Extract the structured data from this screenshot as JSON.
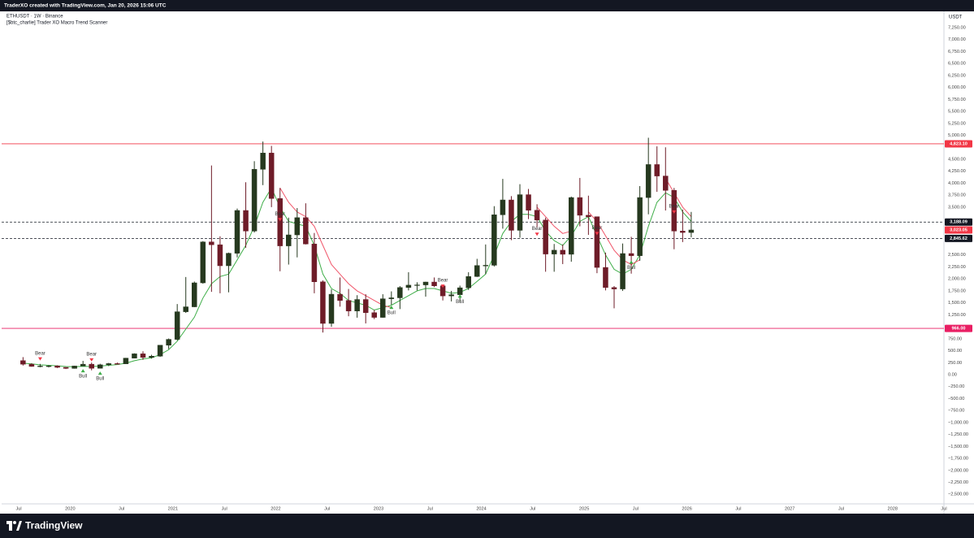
{
  "header": "TraderXO created with TradingView.com, Jan 20, 2026 15:06 UTC",
  "footer": "TradingView",
  "chart_data": {
    "type": "candlestick",
    "title": "ETHUSDT · 1W · Binance",
    "subtitle": "[$btc_charlie] Trader XO Macro Trend Scanner",
    "y_unit": "USDT",
    "up_color": "#26391f",
    "down_color": "#6e1c28",
    "x": [
      "2019-07",
      "2019-08",
      "2019-09",
      "2019-10",
      "2019-11",
      "2019-12",
      "2020-01",
      "2020-02",
      "2020-03",
      "2020-04",
      "2020-05",
      "2020-06",
      "2020-07",
      "2020-08",
      "2020-09",
      "2020-10",
      "2020-11",
      "2020-12",
      "2021-01",
      "2021-02",
      "2021-03",
      "2021-04",
      "2021-05",
      "2021-06",
      "2021-07",
      "2021-08",
      "2021-09",
      "2021-10",
      "2021-11",
      "2021-12",
      "2022-01",
      "2022-02",
      "2022-03",
      "2022-04",
      "2022-05",
      "2022-06",
      "2022-07",
      "2022-08",
      "2022-09",
      "2022-10",
      "2022-11",
      "2022-12",
      "2023-01",
      "2023-02",
      "2023-03",
      "2023-04",
      "2023-05",
      "2023-06",
      "2023-07",
      "2023-08",
      "2023-09",
      "2023-10",
      "2023-11",
      "2023-12",
      "2024-01",
      "2024-02",
      "2024-03",
      "2024-04",
      "2024-05",
      "2024-06",
      "2024-07",
      "2024-08",
      "2024-09",
      "2024-10",
      "2024-11",
      "2024-12",
      "2025-01",
      "2025-02",
      "2025-03",
      "2025-04",
      "2025-05",
      "2025-06",
      "2025-07",
      "2025-08",
      "2025-09",
      "2025-10",
      "2025-11",
      "2025-12",
      "2026-01"
    ],
    "open": [
      293,
      218,
      172,
      180,
      182,
      152,
      130,
      180,
      218,
      133,
      206,
      231,
      226,
      345,
      435,
      360,
      386,
      615,
      737,
      1314,
      1417,
      1918,
      2773,
      2714,
      2275,
      2536,
      3430,
      3000,
      4290,
      4630,
      3680,
      2690,
      2920,
      3280,
      2730,
      1940,
      1070,
      1680,
      1550,
      1330,
      1570,
      1295,
      1196,
      1585,
      1605,
      1820,
      1870,
      1875,
      1935,
      1855,
      1645,
      1670,
      1815,
      2050,
      2280,
      2285,
      3340,
      3650,
      3015,
      3760,
      3435,
      3230,
      2520,
      2600,
      2515,
      3700,
      3330,
      3300,
      2240,
      1820,
      1790,
      2530,
      2485,
      3700,
      4390,
      4150,
      3850,
      3000,
      2970
    ],
    "high": [
      366,
      240,
      224,
      199,
      195,
      155,
      186,
      288,
      253,
      227,
      246,
      253,
      350,
      445,
      488,
      415,
      620,
      755,
      1475,
      2040,
      1945,
      2790,
      4370,
      2890,
      2550,
      3470,
      4020,
      4460,
      4870,
      4780,
      3900,
      3280,
      3480,
      3580,
      2960,
      1970,
      1780,
      2030,
      1790,
      1660,
      1680,
      1350,
      1680,
      1740,
      1850,
      2140,
      1930,
      1940,
      2030,
      1870,
      1750,
      1860,
      2140,
      2420,
      2720,
      3520,
      4090,
      3730,
      3980,
      3880,
      3560,
      3280,
      2730,
      2720,
      3720,
      4110,
      3740,
      3300,
      2550,
      1850,
      2740,
      2880,
      3940,
      4950,
      4770,
      4750,
      3900,
      3450,
      3400
    ],
    "low": [
      190,
      165,
      154,
      151,
      138,
      117,
      126,
      180,
      90,
      130,
      178,
      216,
      225,
      340,
      309,
      335,
      370,
      535,
      715,
      1290,
      1410,
      1900,
      1730,
      1700,
      1720,
      2450,
      2650,
      2970,
      3960,
      3500,
      2160,
      2300,
      2450,
      2720,
      1700,
      880,
      1000,
      1420,
      1220,
      1190,
      1070,
      1160,
      1190,
      1460,
      1370,
      1760,
      1760,
      1630,
      1830,
      1550,
      1530,
      1520,
      1770,
      2040,
      2100,
      2260,
      3050,
      2810,
      2860,
      3250,
      3080,
      2150,
      2150,
      2310,
      2360,
      3100,
      2920,
      2120,
      1760,
      1385,
      1750,
      2110,
      2380,
      3350,
      3820,
      3430,
      2620,
      2770,
      2870
    ],
    "close": [
      218,
      172,
      180,
      182,
      152,
      130,
      180,
      218,
      133,
      206,
      231,
      226,
      345,
      435,
      360,
      386,
      615,
      737,
      1314,
      1417,
      1918,
      2773,
      2714,
      2275,
      2536,
      3430,
      3000,
      4290,
      4630,
      3680,
      2690,
      2920,
      3280,
      2730,
      1940,
      1070,
      1680,
      1550,
      1330,
      1570,
      1295,
      1196,
      1585,
      1605,
      1820,
      1870,
      1875,
      1935,
      1855,
      1645,
      1670,
      1815,
      2050,
      2280,
      2285,
      3340,
      3650,
      3015,
      3760,
      3435,
      3230,
      2520,
      2600,
      2515,
      3700,
      3330,
      3300,
      2240,
      1820,
      1790,
      2530,
      2485,
      3700,
      4390,
      4150,
      3850,
      3000,
      2970,
      3023.05
    ],
    "lines": [
      {
        "color": "#3fae49",
        "values": [
          240,
          225,
          205,
          195,
          185,
          170,
          165,
          175,
          170,
          180,
          195,
          210,
          240,
          290,
          330,
          350,
          420,
          520,
          700,
          950,
          1200,
          1600,
          1900,
          2050,
          2100,
          2400,
          2700,
          3100,
          3600,
          3900,
          3500,
          3200,
          3150,
          3100,
          2700,
          2100,
          1800,
          1700,
          1550,
          1500,
          1450,
          1350,
          1400,
          1450,
          1550,
          1650,
          1750,
          1800,
          1800,
          1750,
          1700,
          1720,
          1800,
          1950,
          2100,
          2500,
          2950,
          3200,
          3350,
          3350,
          3300,
          3000,
          2800,
          2700,
          2900,
          3200,
          3300,
          2900,
          2500,
          2200,
          2100,
          2200,
          2500,
          3100,
          3600,
          3800,
          3700,
          3400,
          3200
        ]
      },
      {
        "color": "#f0566a",
        "values": [
          null,
          null,
          null,
          null,
          null,
          null,
          null,
          null,
          null,
          null,
          null,
          null,
          null,
          null,
          null,
          null,
          null,
          null,
          null,
          null,
          null,
          null,
          null,
          null,
          null,
          null,
          null,
          null,
          null,
          null,
          3900,
          3600,
          3400,
          3300,
          3100,
          2700,
          2300,
          2100,
          1900,
          1750,
          1650,
          1550,
          1450,
          1400,
          null,
          null,
          null,
          null,
          null,
          null,
          null,
          null,
          null,
          null,
          null,
          null,
          null,
          null,
          null,
          null,
          3500,
          3300,
          3100,
          2950,
          3000,
          null,
          3400,
          3200,
          2900,
          2600,
          2400,
          2300,
          2400,
          null,
          null,
          4100,
          3800,
          3500,
          3300
        ]
      }
    ],
    "signals": [
      {
        "label": "Bear",
        "x": "2019-09",
        "value": 260
      },
      {
        "label": "Bull",
        "x": "2020-02",
        "value": 150
      },
      {
        "label": "Bear",
        "x": "2020-03",
        "value": 240
      },
      {
        "label": "Bull",
        "x": "2020-04",
        "value": 100
      },
      {
        "label": "Bear",
        "x": "2022-01",
        "value": 3170
      },
      {
        "label": "Bull",
        "x": "2023-02",
        "value": 1475
      },
      {
        "label": "Bear",
        "x": "2023-08",
        "value": 1780
      },
      {
        "label": "Bull",
        "x": "2023-10",
        "value": 1710
      },
      {
        "label": "Bear",
        "x": "2024-07",
        "value": 2865
      },
      {
        "label": "Bear",
        "x": "2025-02",
        "value": 2880
      },
      {
        "label": "Bull",
        "x": "2025-06",
        "value": 2420
      },
      {
        "label": "Bear",
        "x": "2025-11",
        "value": 3330
      }
    ],
    "levels": [
      {
        "value": 4823.1,
        "label": "4,823.10",
        "color": "#f23645",
        "style": "solid"
      },
      {
        "value": 966,
        "label": "966.00",
        "color": "#e91e63",
        "style": "solid"
      },
      {
        "value": 3188.09,
        "label": "3,188.09",
        "color": "#131722",
        "style": "dashed"
      },
      {
        "value": 2845.62,
        "label": "2,845.62",
        "color": "#131722",
        "style": "dashed"
      }
    ],
    "last_price": {
      "value": 3023.05,
      "label": "3,023.05",
      "color": "#f23645"
    },
    "xlim": [
      "2019-05",
      "2028-07"
    ],
    "xticks": [
      {
        "value": "2019-07",
        "label": "Jul"
      },
      {
        "value": "2020-01",
        "label": "2020"
      },
      {
        "value": "2020-07",
        "label": "Jul"
      },
      {
        "value": "2021-01",
        "label": "2021"
      },
      {
        "value": "2021-07",
        "label": "Jul"
      },
      {
        "value": "2022-01",
        "label": "2022"
      },
      {
        "value": "2022-07",
        "label": "Jul"
      },
      {
        "value": "2023-01",
        "label": "2023"
      },
      {
        "value": "2023-07",
        "label": "Jul"
      },
      {
        "value": "2024-01",
        "label": "2024"
      },
      {
        "value": "2024-07",
        "label": "Jul"
      },
      {
        "value": "2025-01",
        "label": "2025"
      },
      {
        "value": "2025-07",
        "label": "Jul"
      },
      {
        "value": "2026-01",
        "label": "2026"
      },
      {
        "value": "2026-07",
        "label": "Jul"
      },
      {
        "value": "2027-01",
        "label": "2027"
      },
      {
        "value": "2027-07",
        "label": "Jul"
      },
      {
        "value": "2028-01",
        "label": "2028"
      },
      {
        "value": "2028-07",
        "label": "Jul"
      }
    ],
    "ylim": [
      -2700,
      7590
    ],
    "yticks": [
      {
        "value": 7250,
        "label": "7,250.00"
      },
      {
        "value": 7000,
        "label": "7,000.00"
      },
      {
        "value": 6750,
        "label": "6,750.00"
      },
      {
        "value": 6500,
        "label": "6,500.00"
      },
      {
        "value": 6250,
        "label": "6,250.00"
      },
      {
        "value": 6000,
        "label": "6,000.00"
      },
      {
        "value": 5750,
        "label": "5,750.00"
      },
      {
        "value": 5500,
        "label": "5,500.00"
      },
      {
        "value": 5250,
        "label": "5,250.00"
      },
      {
        "value": 5000,
        "label": "5,000.00"
      },
      {
        "value": 4500,
        "label": "4,500.00"
      },
      {
        "value": 4250,
        "label": "4,250.00"
      },
      {
        "value": 4000,
        "label": "4,000.00"
      },
      {
        "value": 3750,
        "label": "3,750.00"
      },
      {
        "value": 3500,
        "label": "3,500.00"
      },
      {
        "value": 2500,
        "label": "2,500.00"
      },
      {
        "value": 2250,
        "label": "2,250.00"
      },
      {
        "value": 2000,
        "label": "2,000.00"
      },
      {
        "value": 1750,
        "label": "1,750.00"
      },
      {
        "value": 1500,
        "label": "1,500.00"
      },
      {
        "value": 1250,
        "label": "1,250.00"
      },
      {
        "value": 750,
        "label": "750.00"
      },
      {
        "value": 500,
        "label": "500.00"
      },
      {
        "value": 250,
        "label": "250.00"
      },
      {
        "value": 0,
        "label": "0.00"
      },
      {
        "value": -250,
        "label": "−250.00"
      },
      {
        "value": -500,
        "label": "−500.00"
      },
      {
        "value": -750,
        "label": "−750.00"
      },
      {
        "value": -1000,
        "label": "−1,000.00"
      },
      {
        "value": -1250,
        "label": "−1,250.00"
      },
      {
        "value": -1500,
        "label": "−1,500.00"
      },
      {
        "value": -1750,
        "label": "−1,750.00"
      },
      {
        "value": -2000,
        "label": "−2,000.00"
      },
      {
        "value": -2250,
        "label": "−2,250.00"
      },
      {
        "value": -2500,
        "label": "−2,500.00"
      }
    ]
  }
}
